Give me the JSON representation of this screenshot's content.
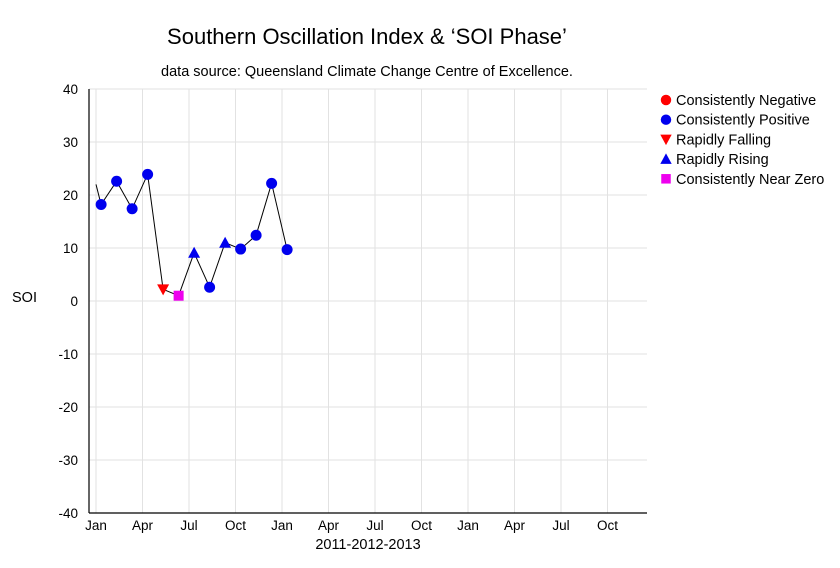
{
  "chart_data": {
    "type": "scatter",
    "title": "Southern Oscillation Index & ‘SOI Phase’",
    "subtitle": "data source: Queensland Climate Change Centre of Excellence.",
    "ylabel": "SOI",
    "xlabel": "2011-2012-2013",
    "ylim": [
      -40,
      40
    ],
    "yticks": [
      40,
      30,
      20,
      10,
      0,
      -10,
      -20,
      -30,
      -40
    ],
    "xticks": [
      "Jan",
      "Apr",
      "Jul",
      "Oct",
      "Jan",
      "Apr",
      "Jul",
      "Oct",
      "Jan",
      "Apr",
      "Jul",
      "Oct"
    ],
    "grid": true,
    "legend_position": "top-right",
    "colors": {
      "line": "#000000",
      "grid": "#e2e2e2",
      "Consistently Negative": "#ff0000",
      "Consistently Positive": "#0000ee",
      "Rapidly Falling": "#ff0000",
      "Rapidly Rising": "#0000ee",
      "Consistently Near Zero": "#ee00ee"
    },
    "legend": [
      {
        "name": "Consistently Negative",
        "marker": "circle"
      },
      {
        "name": "Consistently Positive",
        "marker": "circle"
      },
      {
        "name": "Rapidly Falling",
        "marker": "triangle-down"
      },
      {
        "name": "Rapidly Rising",
        "marker": "triangle-up"
      },
      {
        "name": "Consistently Near Zero",
        "marker": "square"
      }
    ],
    "line_start": {
      "x": 0.0,
      "y": 22.0
    },
    "points": [
      {
        "x": 0.33,
        "y": 18.2,
        "phase": "Consistently Positive"
      },
      {
        "x": 1.33,
        "y": 22.6,
        "phase": "Consistently Positive"
      },
      {
        "x": 2.33,
        "y": 17.4,
        "phase": "Consistently Positive"
      },
      {
        "x": 3.33,
        "y": 23.9,
        "phase": "Consistently Positive"
      },
      {
        "x": 4.33,
        "y": 2.2,
        "phase": "Rapidly Falling"
      },
      {
        "x": 5.33,
        "y": 1.0,
        "phase": "Consistently Near Zero"
      },
      {
        "x": 6.33,
        "y": 9.1,
        "phase": "Rapidly Rising"
      },
      {
        "x": 7.33,
        "y": 2.6,
        "phase": "Consistently Positive"
      },
      {
        "x": 8.33,
        "y": 11.0,
        "phase": "Rapidly Rising"
      },
      {
        "x": 9.33,
        "y": 9.8,
        "phase": "Consistently Positive"
      },
      {
        "x": 10.33,
        "y": 12.4,
        "phase": "Consistently Positive"
      },
      {
        "x": 11.33,
        "y": 22.2,
        "phase": "Consistently Positive"
      },
      {
        "x": 12.33,
        "y": 9.7,
        "phase": "Consistently Positive"
      }
    ]
  }
}
